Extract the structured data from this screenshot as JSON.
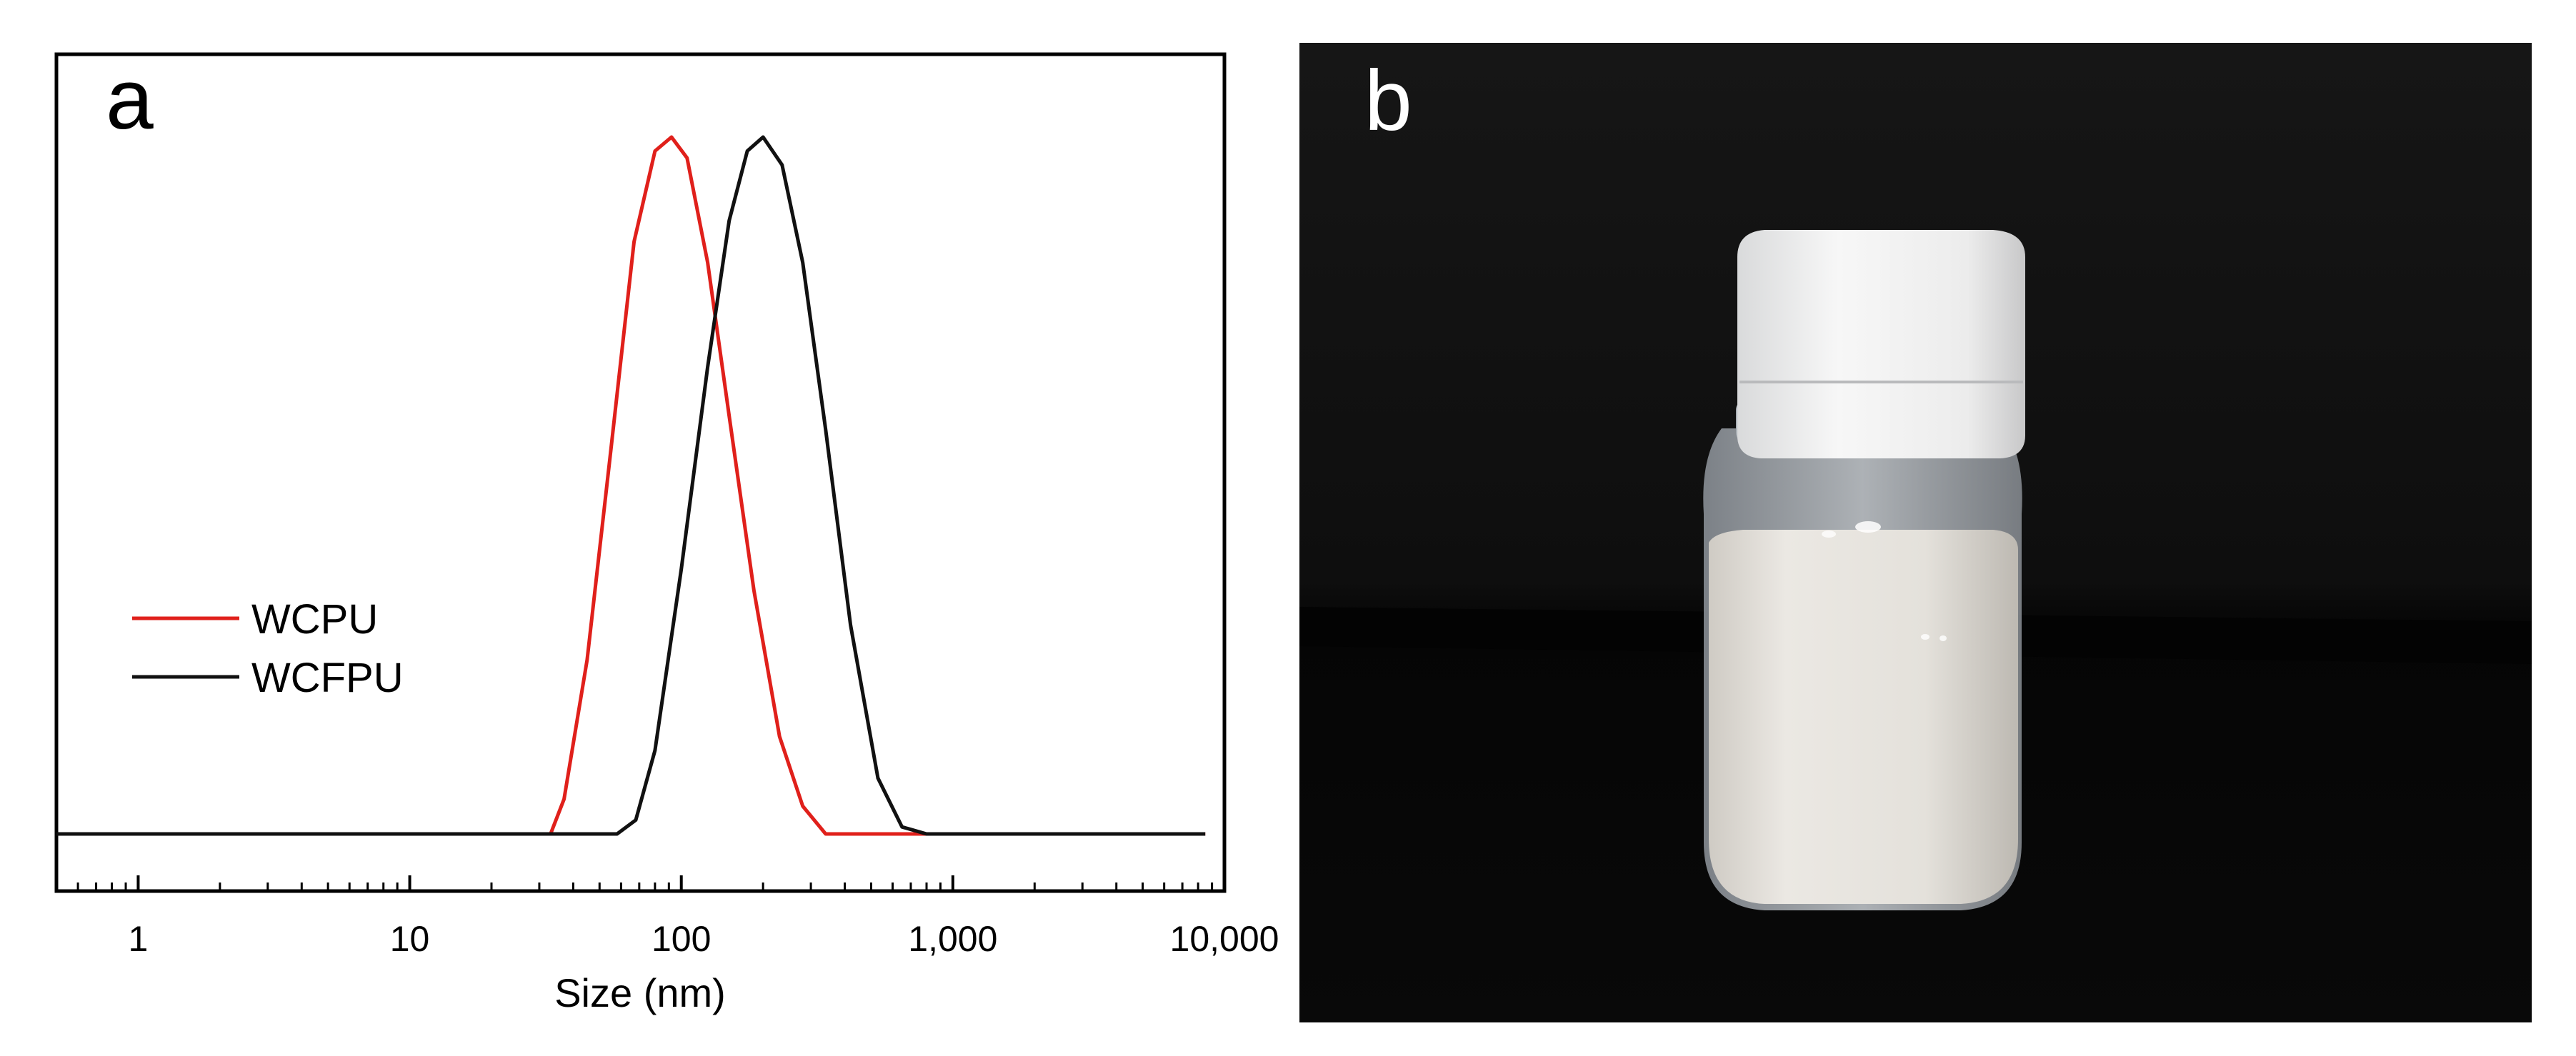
{
  "panels": {
    "a_label": "a",
    "b_label": "b"
  },
  "colors": {
    "wcpu": "#e0201b",
    "wcfpu": "#111111",
    "photo_bg": "#0d0d0d",
    "photo_letter": "#ffffff"
  },
  "photo": {
    "description_icon": "bottle-photo-icon"
  },
  "chart_data": {
    "type": "line",
    "title": "",
    "xlabel": "Size (nm)",
    "ylabel": "",
    "xscale": "log",
    "xlim": [
      0.5,
      10000
    ],
    "ylim": [
      0,
      1.05
    ],
    "xticks": [
      1,
      10,
      100,
      1000,
      10000
    ],
    "xtick_labels": [
      "1",
      "10",
      "100",
      "1,000",
      "10,000"
    ],
    "grid": false,
    "legend_position": "middle-left",
    "series": [
      {
        "name": "WCPU",
        "color": "#e0201b",
        "points": [
          [
            0.5,
            0
          ],
          [
            33,
            0
          ],
          [
            37,
            0.05
          ],
          [
            45,
            0.25
          ],
          [
            55,
            0.55
          ],
          [
            67,
            0.85
          ],
          [
            80,
            0.98
          ],
          [
            92,
            1.0
          ],
          [
            105,
            0.97
          ],
          [
            125,
            0.82
          ],
          [
            150,
            0.6
          ],
          [
            185,
            0.35
          ],
          [
            230,
            0.14
          ],
          [
            280,
            0.04
          ],
          [
            340,
            0.0
          ],
          [
            8500,
            0
          ]
        ]
      },
      {
        "name": "WCFPU",
        "color": "#111111",
        "points": [
          [
            0.5,
            0
          ],
          [
            58,
            0
          ],
          [
            68,
            0.02
          ],
          [
            80,
            0.12
          ],
          [
            100,
            0.38
          ],
          [
            125,
            0.67
          ],
          [
            150,
            0.88
          ],
          [
            175,
            0.98
          ],
          [
            200,
            1.0
          ],
          [
            235,
            0.96
          ],
          [
            280,
            0.82
          ],
          [
            340,
            0.58
          ],
          [
            420,
            0.3
          ],
          [
            530,
            0.08
          ],
          [
            650,
            0.01
          ],
          [
            800,
            0
          ],
          [
            8500,
            0
          ]
        ]
      }
    ]
  }
}
